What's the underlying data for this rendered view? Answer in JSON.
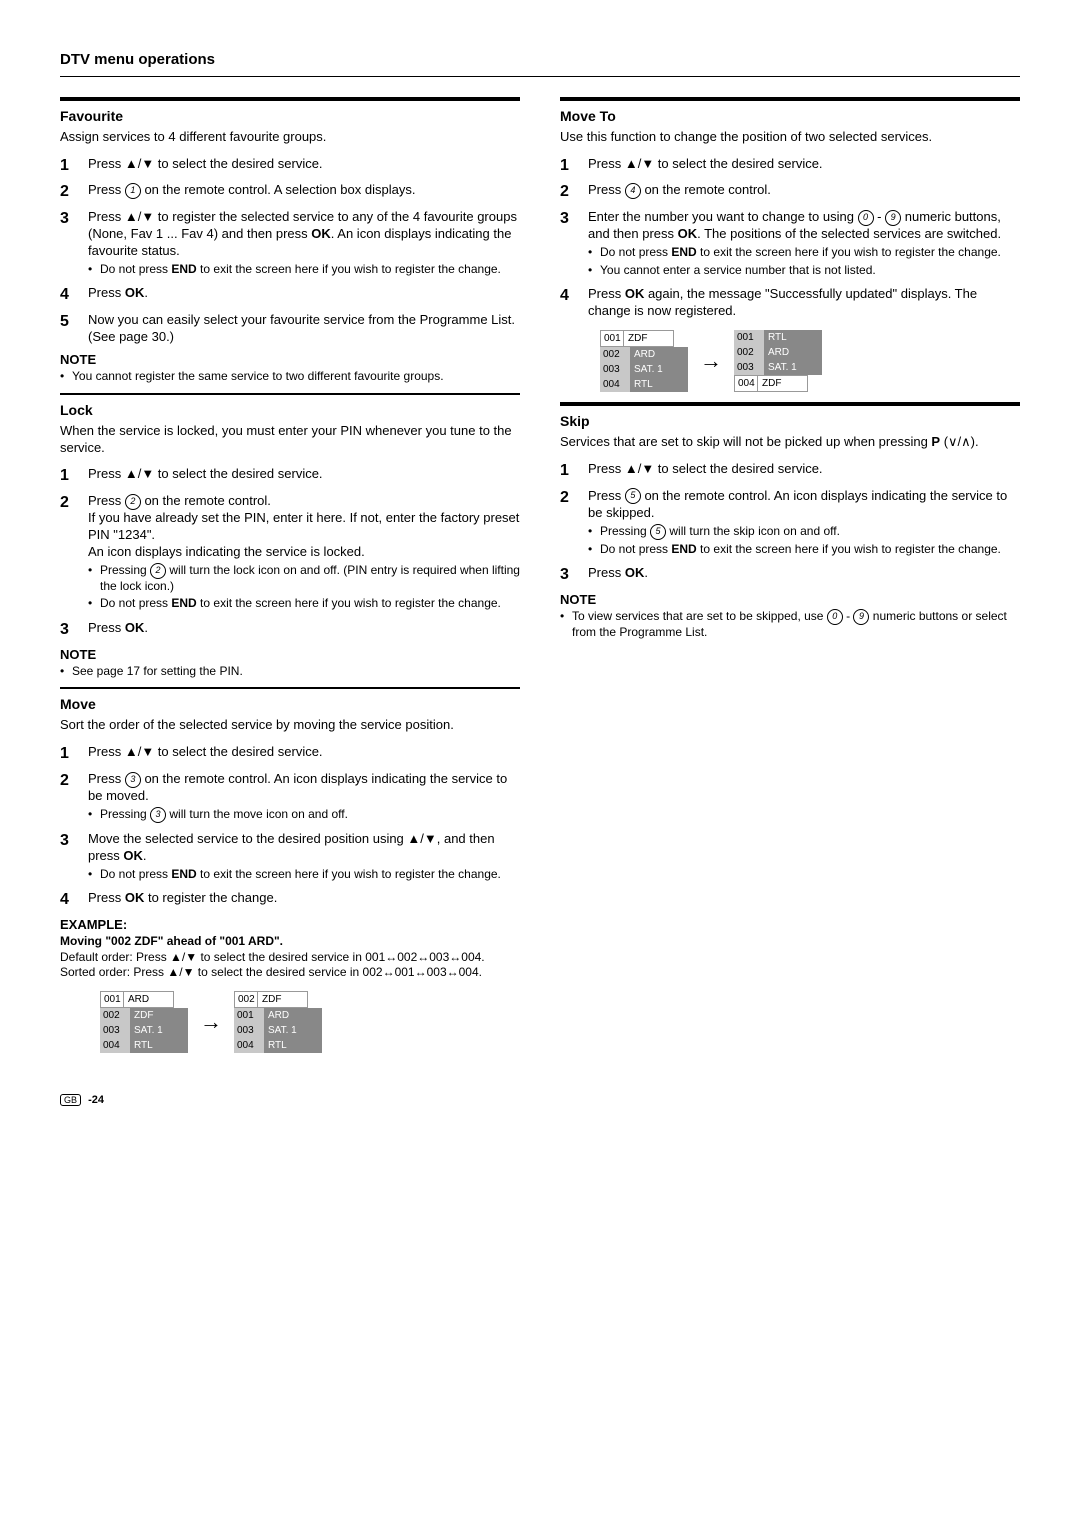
{
  "page": {
    "title": "DTV menu operations",
    "footer_region": "GB",
    "footer_page": "-24"
  },
  "favourite": {
    "title": "Favourite",
    "intro": "Assign services to 4 different favourite groups.",
    "step1": "Press ▲/▼ to select the desired service.",
    "step2": "Press ① on the remote control. A selection box displays.",
    "step3_a": "Press ▲/▼ to register the selected service to any of the 4 favourite groups (None, Fav 1 ... Fav 4) and then press ",
    "step3_ok": "OK",
    "step3_b": ". An icon displays indicating the favourite status.",
    "step3_bullet_a": "Do not press ",
    "step3_bullet_end": "END",
    "step3_bullet_b": " to exit the screen here if you wish to register the change.",
    "step4_a": "Press ",
    "step4_ok": "OK",
    "step4_b": ".",
    "step5": "Now you can easily select your favourite service from the Programme List. (See page 30.)",
    "note_head": "NOTE",
    "note_body": "You cannot register the same service to two different favourite groups."
  },
  "lock": {
    "title": "Lock",
    "intro": "When the service is locked, you must enter your PIN whenever you tune to the service.",
    "step1": "Press ▲/▼ to select the desired service.",
    "step2_a": "Press ② on the remote control.",
    "step2_b": "If you have already set the PIN, enter it here. If not, enter the factory preset PIN \"1234\".",
    "step2_c": "An icon displays indicating the service is locked.",
    "step2_bullet1": "Pressing ② will turn the lock icon on and off. (PIN entry is required when lifting the lock icon.)",
    "step2_bullet2_a": "Do not press ",
    "step2_bullet2_end": "END",
    "step2_bullet2_b": " to exit the screen here if you wish to register the change.",
    "step3_a": "Press ",
    "step3_ok": "OK",
    "step3_b": ".",
    "note_head": "NOTE",
    "note_body": "See page 17 for setting the PIN."
  },
  "move": {
    "title": "Move",
    "intro": "Sort the order of the selected service by moving the service position.",
    "step1": "Press ▲/▼ to select the desired service.",
    "step2": "Press ③ on the remote control. An icon displays indicating the service to be moved.",
    "step2_bullet": "Pressing ③ will turn the move icon on and off.",
    "step3_a": "Move the selected service to the desired position using ▲/▼, and then press ",
    "step3_ok": "OK",
    "step3_b": ".",
    "step3_bullet_a": "Do not press ",
    "step3_bullet_end": "END",
    "step3_bullet_b": " to exit the screen here if you wish to register the change.",
    "step4_a": "Press ",
    "step4_ok": "OK",
    "step4_b": " to register the change.",
    "example_head": "EXAMPLE:",
    "example_sub": "Moving \"002 ZDF\" ahead of \"001 ARD\".",
    "example_line1": "Default order: Press ▲/▼ to select the desired service in 001↔002↔003↔004.",
    "example_line2": "Sorted order: Press ▲/▼ to select the desired service in 002↔001↔003↔004.",
    "table_left": [
      {
        "n": "001",
        "s": "ARD",
        "hl": true
      },
      {
        "n": "002",
        "s": "ZDF"
      },
      {
        "n": "003",
        "s": "SAT. 1"
      },
      {
        "n": "004",
        "s": "RTL"
      }
    ],
    "table_right": [
      {
        "n": "002",
        "s": "ZDF",
        "hl": true
      },
      {
        "n": "001",
        "s": "ARD"
      },
      {
        "n": "003",
        "s": "SAT. 1"
      },
      {
        "n": "004",
        "s": "RTL"
      }
    ]
  },
  "moveto": {
    "title": "Move To",
    "intro": "Use this function to change the position of two selected services.",
    "step1": "Press ▲/▼ to select the desired service.",
    "step2": "Press ④ on the remote control.",
    "step3_a": "Enter the number you want to change to using ⓪ - ⑨ numeric buttons, and then press ",
    "step3_ok": "OK",
    "step3_b": ". The positions of the selected services are switched.",
    "step3_bullet1_a": "Do not press ",
    "step3_bullet1_end": "END",
    "step3_bullet1_b": " to exit the screen here if you wish to register the change.",
    "step3_bullet2": "You cannot enter a service number that is not listed.",
    "step4_a": "Press ",
    "step4_ok": "OK",
    "step4_b": " again, the message \"Successfully updated\" displays. The change is now registered.",
    "table_left": [
      {
        "n": "001",
        "s": "ZDF",
        "hl": true
      },
      {
        "n": "002",
        "s": "ARD"
      },
      {
        "n": "003",
        "s": "SAT. 1"
      },
      {
        "n": "004",
        "s": "RTL"
      }
    ],
    "table_right": [
      {
        "n": "001",
        "s": "RTL"
      },
      {
        "n": "002",
        "s": "ARD"
      },
      {
        "n": "003",
        "s": "SAT. 1"
      },
      {
        "n": "004",
        "s": "ZDF",
        "hl": true
      }
    ]
  },
  "skip": {
    "title": "Skip",
    "intro_a": "Services that are set to skip will not be picked up when pressing ",
    "intro_b": "P",
    "intro_c": " (∨/∧).",
    "step1": "Press ▲/▼ to select the desired service.",
    "step2": "Press ⑤ on the remote control. An icon displays indicating the service to be skipped.",
    "step2_bullet1": "Pressing ⑤ will turn the skip icon on and off.",
    "step2_bullet2_a": "Do not press ",
    "step2_bullet2_end": "END",
    "step2_bullet2_b": " to exit the screen here if you wish to register the change.",
    "step3_a": "Press ",
    "step3_ok": "OK",
    "step3_b": ".",
    "note_head": "NOTE",
    "note_body": "To view services that are set to be skipped, use ⓪ - ⑨ numeric buttons or select from the Programme List."
  }
}
